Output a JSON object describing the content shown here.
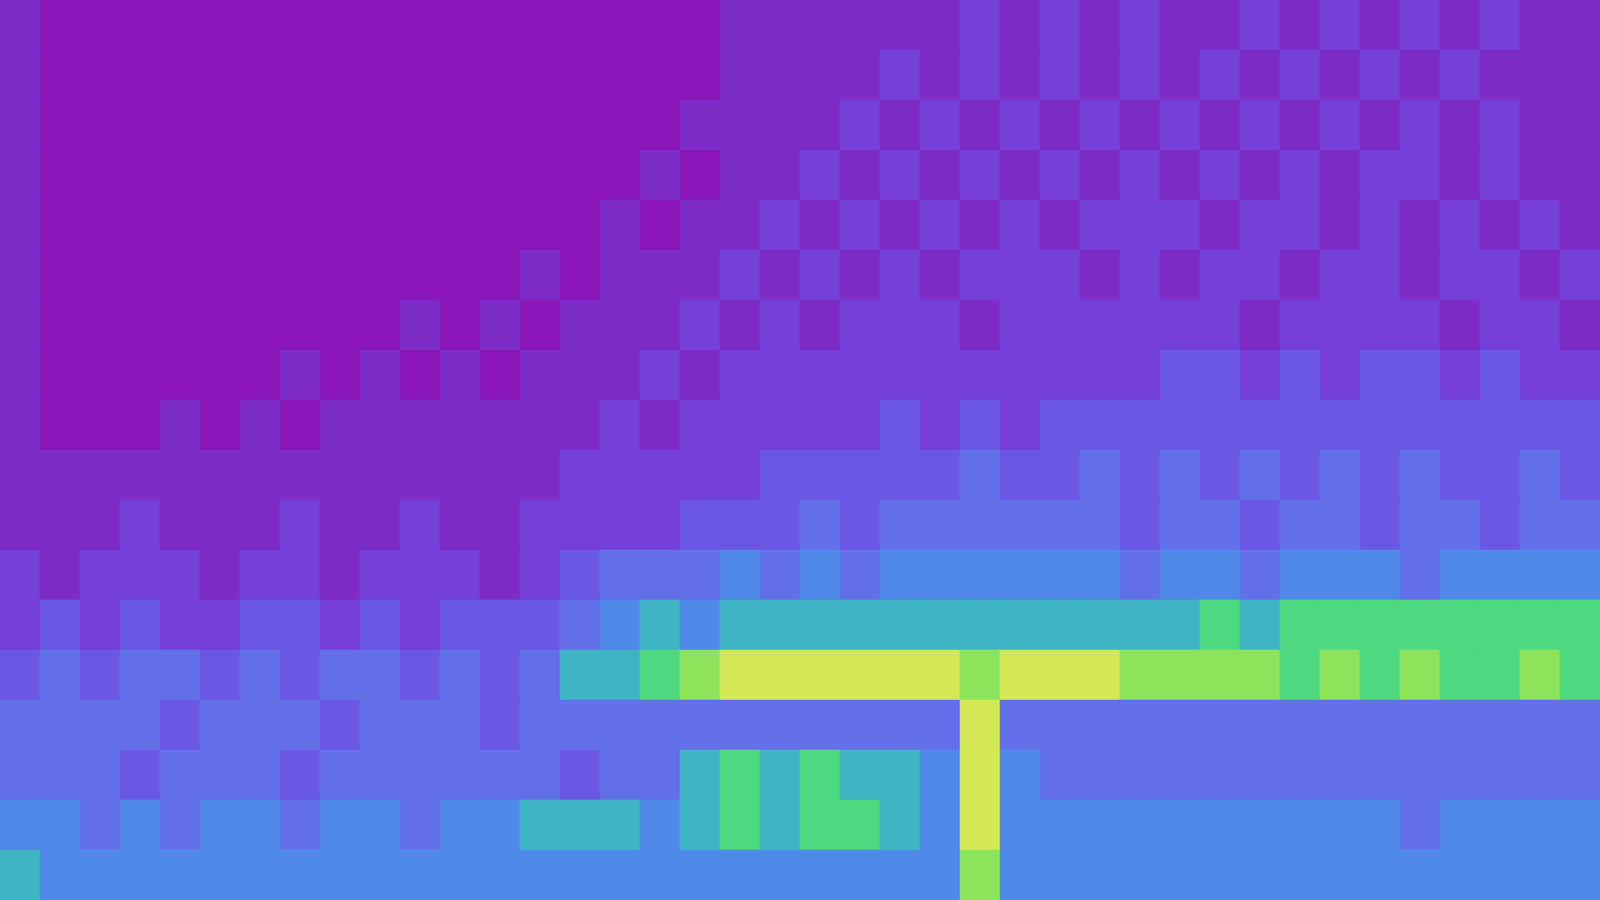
{
  "chart_data": {
    "type": "heatmap",
    "tick_labels": false,
    "zlim": [
      0,
      10
    ],
    "cells": [
      [
        1,
        0,
        0,
        0,
        0,
        0,
        0,
        0,
        0,
        0,
        0,
        0,
        0,
        0,
        0,
        0,
        0,
        0,
        1,
        1,
        1,
        1,
        1,
        1,
        2,
        1,
        2,
        1,
        2,
        1,
        1,
        2,
        1,
        2,
        1,
        2,
        1,
        2,
        1,
        1
      ],
      [
        1,
        0,
        0,
        0,
        0,
        0,
        0,
        0,
        0,
        0,
        0,
        0,
        0,
        0,
        0,
        0,
        0,
        0,
        1,
        1,
        1,
        1,
        2,
        1,
        2,
        1,
        2,
        1,
        2,
        1,
        2,
        1,
        2,
        1,
        2,
        1,
        2,
        1,
        1,
        1
      ],
      [
        1,
        0,
        0,
        0,
        0,
        0,
        0,
        0,
        0,
        0,
        0,
        0,
        0,
        0,
        0,
        0,
        0,
        1,
        1,
        1,
        1,
        2,
        1,
        2,
        1,
        2,
        1,
        2,
        1,
        2,
        1,
        2,
        1,
        2,
        1,
        2,
        1,
        2,
        1,
        1
      ],
      [
        1,
        0,
        0,
        0,
        0,
        0,
        0,
        0,
        0,
        0,
        0,
        0,
        0,
        0,
        0,
        0,
        1,
        0,
        1,
        1,
        2,
        1,
        2,
        1,
        2,
        1,
        2,
        1,
        2,
        1,
        2,
        1,
        2,
        1,
        2,
        2,
        1,
        2,
        1,
        1
      ],
      [
        1,
        0,
        0,
        0,
        0,
        0,
        0,
        0,
        0,
        0,
        0,
        0,
        0,
        0,
        0,
        1,
        0,
        1,
        1,
        2,
        1,
        2,
        1,
        2,
        1,
        2,
        1,
        2,
        2,
        2,
        1,
        2,
        2,
        1,
        2,
        1,
        2,
        1,
        2,
        1
      ],
      [
        1,
        0,
        0,
        0,
        0,
        0,
        0,
        0,
        0,
        0,
        0,
        0,
        0,
        1,
        0,
        1,
        1,
        1,
        2,
        1,
        2,
        1,
        2,
        1,
        2,
        2,
        2,
        1,
        2,
        1,
        2,
        2,
        1,
        2,
        2,
        1,
        2,
        2,
        1,
        2
      ],
      [
        1,
        0,
        0,
        0,
        0,
        0,
        0,
        0,
        0,
        0,
        1,
        0,
        1,
        0,
        1,
        1,
        1,
        2,
        1,
        2,
        1,
        2,
        2,
        2,
        1,
        2,
        2,
        2,
        2,
        2,
        2,
        1,
        2,
        2,
        2,
        2,
        1,
        2,
        2,
        1
      ],
      [
        1,
        0,
        0,
        0,
        0,
        0,
        0,
        1,
        0,
        1,
        0,
        1,
        0,
        1,
        1,
        1,
        2,
        1,
        2,
        2,
        2,
        2,
        2,
        2,
        2,
        2,
        2,
        2,
        2,
        3,
        3,
        2,
        3,
        2,
        3,
        3,
        2,
        3,
        2,
        2
      ],
      [
        1,
        0,
        0,
        0,
        1,
        0,
        1,
        0,
        1,
        1,
        1,
        1,
        1,
        1,
        1,
        2,
        1,
        2,
        2,
        2,
        2,
        2,
        3,
        2,
        3,
        2,
        3,
        3,
        3,
        3,
        3,
        3,
        3,
        3,
        3,
        3,
        3,
        3,
        3,
        3
      ],
      [
        1,
        1,
        1,
        1,
        1,
        1,
        1,
        1,
        1,
        1,
        1,
        1,
        1,
        1,
        2,
        2,
        2,
        2,
        2,
        3,
        3,
        3,
        3,
        3,
        4,
        3,
        3,
        4,
        3,
        4,
        3,
        4,
        3,
        4,
        3,
        4,
        3,
        3,
        4,
        3
      ],
      [
        1,
        1,
        1,
        2,
        1,
        1,
        1,
        2,
        1,
        1,
        2,
        1,
        1,
        2,
        2,
        2,
        2,
        3,
        3,
        3,
        4,
        3,
        4,
        4,
        4,
        4,
        4,
        4,
        3,
        4,
        4,
        3,
        4,
        4,
        3,
        4,
        4,
        3,
        4,
        4
      ],
      [
        2,
        1,
        2,
        2,
        2,
        1,
        2,
        2,
        1,
        2,
        2,
        2,
        1,
        2,
        3,
        4,
        4,
        4,
        5,
        4,
        5,
        4,
        5,
        5,
        5,
        5,
        5,
        5,
        4,
        5,
        5,
        4,
        5,
        5,
        5,
        4,
        5,
        5,
        5,
        5
      ],
      [
        2,
        3,
        2,
        3,
        2,
        2,
        3,
        3,
        2,
        3,
        2,
        3,
        3,
        3,
        4,
        5,
        6,
        5,
        6,
        6,
        6,
        6,
        6,
        6,
        6,
        6,
        6,
        6,
        6,
        6,
        7,
        6,
        7,
        7,
        7,
        7,
        7,
        7,
        7,
        7
      ],
      [
        3,
        4,
        3,
        4,
        4,
        3,
        4,
        3,
        4,
        4,
        3,
        4,
        3,
        4,
        6,
        6,
        7,
        8,
        9,
        9,
        9,
        9,
        9,
        9,
        8,
        9,
        9,
        9,
        8,
        8,
        8,
        8,
        7,
        8,
        7,
        8,
        7,
        7,
        8,
        7
      ],
      [
        4,
        4,
        4,
        4,
        3,
        4,
        4,
        4,
        3,
        4,
        4,
        4,
        3,
        4,
        4,
        4,
        4,
        4,
        4,
        4,
        4,
        4,
        4,
        4,
        9,
        4,
        4,
        4,
        4,
        4,
        4,
        4,
        4,
        4,
        4,
        4,
        4,
        4,
        4,
        4
      ],
      [
        4,
        4,
        4,
        3,
        4,
        4,
        4,
        3,
        4,
        4,
        4,
        4,
        4,
        4,
        3,
        4,
        4,
        6,
        7,
        6,
        7,
        6,
        6,
        5,
        9,
        5,
        4,
        4,
        4,
        4,
        4,
        4,
        4,
        4,
        4,
        4,
        4,
        4,
        4,
        4
      ],
      [
        5,
        5,
        4,
        5,
        4,
        5,
        5,
        4,
        5,
        5,
        4,
        5,
        5,
        6,
        6,
        6,
        5,
        6,
        7,
        6,
        7,
        7,
        6,
        5,
        9,
        5,
        5,
        5,
        5,
        5,
        5,
        5,
        5,
        5,
        5,
        4,
        5,
        5,
        5,
        5
      ],
      [
        6,
        5,
        5,
        5,
        5,
        5,
        5,
        5,
        5,
        5,
        5,
        5,
        5,
        5,
        5,
        5,
        5,
        5,
        5,
        5,
        5,
        5,
        5,
        5,
        8,
        5,
        5,
        5,
        5,
        5,
        5,
        5,
        5,
        5,
        5,
        5,
        5,
        5,
        5,
        5
      ]
    ]
  }
}
